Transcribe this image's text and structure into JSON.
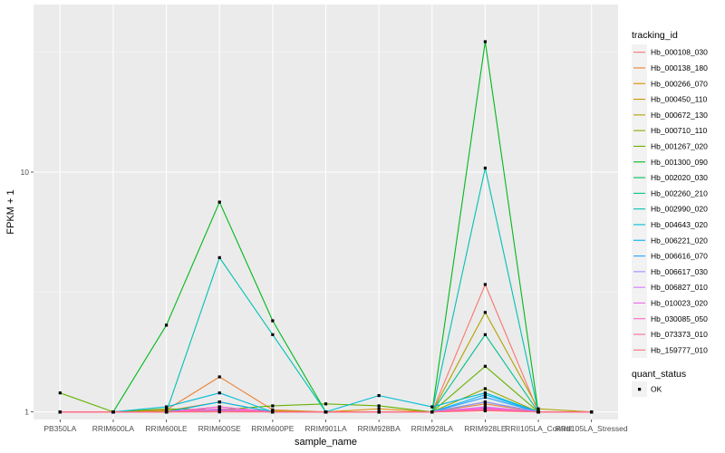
{
  "chart_data": {
    "type": "line",
    "xlabel": "sample_name",
    "ylabel": "FPKM + 1",
    "y_scale": "log10",
    "ylim": [
      0.93,
      50
    ],
    "y_ticks": [
      {
        "value": 1,
        "label": "1"
      },
      {
        "value": 10,
        "label": "10"
      }
    ],
    "categories": [
      "PB350LA",
      "RRIM600LA",
      "RRIM600LE",
      "RRIM600SE",
      "RRIM600PE",
      "RRIM901LA",
      "RRIM928BA",
      "RRIM928LA",
      "RRIM928LE",
      "RRII105LA_Control",
      "RRII105LA_Stressed"
    ],
    "grid": true,
    "legend_position": "right",
    "legend_title": "tracking_id",
    "series": [
      {
        "name": "Hb_000108_030",
        "color": "#F8766D",
        "values": [
          1.0,
          1.0,
          1.0,
          1.05,
          1.0,
          1.0,
          1.0,
          1.0,
          3.4,
          1.0,
          1.0
        ]
      },
      {
        "name": "Hb_000138_180",
        "color": "#EC8239",
        "values": [
          1.0,
          1.0,
          1.02,
          1.4,
          1.02,
          1.0,
          1.0,
          1.0,
          1.08,
          1.0,
          1.0
        ]
      },
      {
        "name": "Hb_000266_070",
        "color": "#DB8E00",
        "values": [
          1.0,
          1.0,
          1.01,
          1.1,
          1.0,
          1.0,
          1.03,
          1.0,
          1.02,
          1.0,
          1.0
        ]
      },
      {
        "name": "Hb_000450_110",
        "color": "#C79800",
        "values": [
          1.0,
          1.0,
          1.0,
          1.05,
          1.0,
          1.0,
          1.0,
          1.0,
          1.03,
          1.0,
          1.0
        ]
      },
      {
        "name": "Hb_000672_130",
        "color": "#AEA200",
        "values": [
          1.0,
          1.0,
          1.01,
          1.02,
          1.01,
          1.0,
          1.0,
          1.0,
          2.6,
          1.03,
          1.0
        ]
      },
      {
        "name": "Hb_000710_110",
        "color": "#8FAA00",
        "values": [
          1.0,
          1.0,
          1.0,
          1.02,
          1.0,
          1.0,
          1.0,
          1.0,
          1.25,
          1.0,
          1.0
        ]
      },
      {
        "name": "Hb_001267_020",
        "color": "#64B200",
        "values": [
          1.2,
          1.0,
          1.03,
          1.02,
          1.06,
          1.08,
          1.06,
          1.0,
          1.55,
          1.0,
          1.0
        ]
      },
      {
        "name": "Hb_001300_090",
        "color": "#00B81B",
        "values": [
          1.0,
          1.0,
          2.3,
          7.5,
          2.4,
          1.0,
          1.0,
          1.0,
          35.0,
          1.0,
          1.0
        ]
      },
      {
        "name": "Hb_002020_030",
        "color": "#00BD5C",
        "values": [
          1.0,
          1.0,
          1.0,
          1.02,
          1.0,
          1.0,
          1.0,
          1.0,
          1.1,
          1.0,
          1.0
        ]
      },
      {
        "name": "Hb_002260_210",
        "color": "#00C08B",
        "values": [
          1.0,
          1.0,
          1.0,
          1.02,
          1.0,
          1.0,
          1.0,
          1.0,
          2.1,
          1.0,
          1.0
        ]
      },
      {
        "name": "Hb_002990_020",
        "color": "#00C1B2",
        "values": [
          1.0,
          1.0,
          1.0,
          4.4,
          2.1,
          1.0,
          1.0,
          1.0,
          10.4,
          1.0,
          1.0
        ]
      },
      {
        "name": "Hb_004643_020",
        "color": "#00BCD6",
        "values": [
          1.0,
          1.0,
          1.05,
          1.2,
          1.0,
          1.0,
          1.17,
          1.05,
          1.2,
          1.0,
          1.0
        ]
      },
      {
        "name": "Hb_006221_020",
        "color": "#00B3F2",
        "values": [
          1.0,
          1.0,
          1.0,
          1.1,
          1.0,
          1.0,
          1.0,
          1.0,
          1.18,
          1.0,
          1.0
        ]
      },
      {
        "name": "Hb_006616_070",
        "color": "#29A3FF",
        "values": [
          1.0,
          1.0,
          1.0,
          1.02,
          1.0,
          1.0,
          1.0,
          1.0,
          1.15,
          1.0,
          1.0
        ]
      },
      {
        "name": "Hb_006617_030",
        "color": "#9C8DFF",
        "values": [
          1.0,
          1.0,
          1.0,
          1.02,
          1.0,
          1.0,
          1.0,
          1.0,
          1.1,
          1.0,
          1.0
        ]
      },
      {
        "name": "Hb_006827_010",
        "color": "#D277FF",
        "values": [
          1.0,
          1.0,
          1.0,
          1.01,
          1.0,
          1.0,
          1.0,
          1.0,
          1.05,
          1.0,
          1.0
        ]
      },
      {
        "name": "Hb_010023_020",
        "color": "#F166E8",
        "values": [
          1.0,
          1.0,
          1.0,
          1.05,
          1.0,
          1.0,
          1.0,
          1.0,
          1.03,
          1.0,
          1.0
        ]
      },
      {
        "name": "Hb_030085_050",
        "color": "#FF61C7",
        "values": [
          1.0,
          1.0,
          1.0,
          1.03,
          1.0,
          1.0,
          1.0,
          1.0,
          1.04,
          1.0,
          1.0
        ]
      },
      {
        "name": "Hb_073373_010",
        "color": "#FF689E",
        "values": [
          1.0,
          1.0,
          1.0,
          1.01,
          1.0,
          1.0,
          1.0,
          1.0,
          1.02,
          1.0,
          1.0
        ]
      },
      {
        "name": "Hb_159777_010",
        "color": "#FF7076",
        "values": [
          1.0,
          1.0,
          1.0,
          1.0,
          1.0,
          1.0,
          1.0,
          1.0,
          1.01,
          1.0,
          1.0
        ]
      }
    ],
    "shape_legend": {
      "title": "quant_status",
      "items": [
        {
          "label": "OK",
          "shape": "square",
          "color": "#000000"
        }
      ]
    }
  }
}
